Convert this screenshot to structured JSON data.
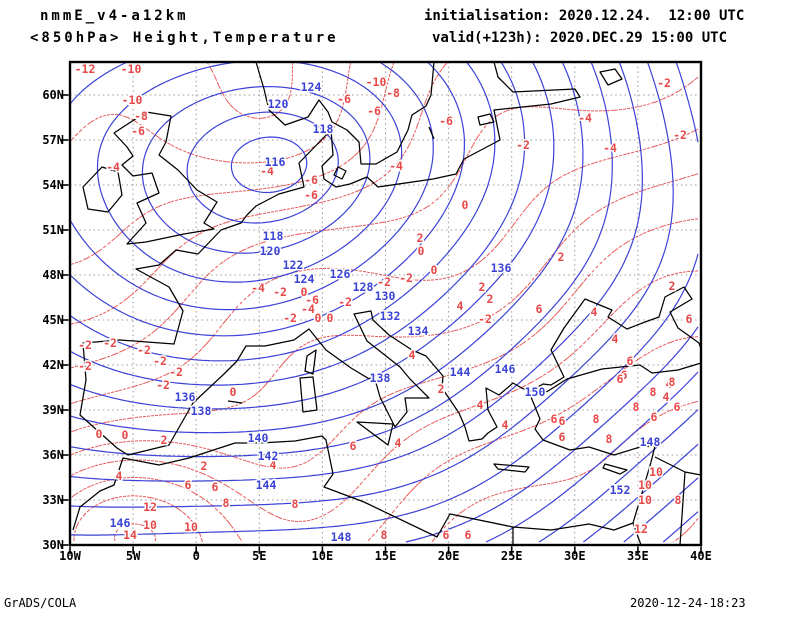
{
  "header": {
    "model_name": "nmmE_v4-a12km",
    "product_line": "<850hPa> Height,Temperature",
    "init_line": "initialisation: 2020.12.24.  12:00 UTC",
    "valid_line": "valid(+123h): 2020.DEC.29 15:00 UTC"
  },
  "footer": {
    "left": "GrADS/COLA",
    "right": "2020-12-24-18:23"
  },
  "map": {
    "lat_labels": [
      "60N",
      "57N",
      "54N",
      "51N",
      "48N",
      "45N",
      "42N",
      "39N",
      "36N",
      "33N",
      "30N"
    ],
    "lon_labels": [
      "10W",
      "5W",
      "0",
      "5E",
      "10E",
      "15E",
      "20E",
      "25E",
      "30E",
      "35E",
      "40E"
    ],
    "colors": {
      "height_contour": "#3b42d6",
      "temp_contour": "#e85a5a",
      "temp_label": "#e84848",
      "coastline": "#000000",
      "gridline": "#9a9a9a",
      "frame": "#000000",
      "text": "#000000"
    },
    "height_contour_units": "dm",
    "temp_contour_units": "C",
    "height_levels": [
      116,
      118,
      120,
      122,
      124,
      126,
      128,
      130,
      132,
      134,
      136,
      138,
      140,
      142,
      144,
      146,
      148,
      150,
      152
    ],
    "temp_levels": [
      -12,
      -10,
      -8,
      -6,
      -4,
      -2,
      0,
      2,
      4,
      6,
      8,
      10,
      12,
      14
    ],
    "height_labels": [
      [
        116,
        205,
        100
      ],
      [
        118,
        253,
        67
      ],
      [
        118,
        203,
        174
      ],
      [
        120,
        208,
        42
      ],
      [
        120,
        200,
        189
      ],
      [
        122,
        223,
        203
      ],
      [
        124,
        241,
        25
      ],
      [
        124,
        234,
        217
      ],
      [
        126,
        270,
        212
      ],
      [
        128,
        293,
        225
      ],
      [
        130,
        315,
        234
      ],
      [
        132,
        320,
        254
      ],
      [
        134,
        348,
        269
      ],
      [
        136,
        431,
        206
      ],
      [
        136,
        115,
        335
      ],
      [
        138,
        131,
        349
      ],
      [
        138,
        310,
        316
      ],
      [
        140,
        188,
        376
      ],
      [
        142,
        198,
        394
      ],
      [
        144,
        196,
        423
      ],
      [
        144,
        390,
        310
      ],
      [
        146,
        50,
        461
      ],
      [
        146,
        435,
        307
      ],
      [
        148,
        271,
        475
      ],
      [
        148,
        580,
        380
      ],
      [
        150,
        465,
        330
      ],
      [
        152,
        550,
        428
      ]
    ],
    "temp_labels": [
      [
        -12,
        15,
        7
      ],
      [
        -10,
        61,
        7
      ],
      [
        -10,
        62,
        38
      ],
      [
        -10,
        306,
        20
      ],
      [
        -8,
        71,
        54
      ],
      [
        -8,
        323,
        31
      ],
      [
        -6,
        68,
        69
      ],
      [
        -6,
        274,
        37
      ],
      [
        -6,
        304,
        49
      ],
      [
        -6,
        376,
        59
      ],
      [
        -6,
        241,
        118
      ],
      [
        -6,
        241,
        133
      ],
      [
        -6,
        242,
        238
      ],
      [
        -4,
        43,
        105
      ],
      [
        -4,
        326,
        104
      ],
      [
        -4,
        197,
        109
      ],
      [
        -4,
        515,
        56
      ],
      [
        -4,
        540,
        86
      ],
      [
        -4,
        238,
        247
      ],
      [
        -4,
        188,
        226
      ],
      [
        -2,
        594,
        21
      ],
      [
        -2,
        610,
        73
      ],
      [
        -2,
        453,
        83
      ],
      [
        -2,
        314,
        220
      ],
      [
        -2,
        336,
        216
      ],
      [
        -2,
        275,
        240
      ],
      [
        -2,
        210,
        230
      ],
      [
        -2,
        220,
        256
      ],
      [
        -2,
        15,
        283
      ],
      [
        -2,
        40,
        281
      ],
      [
        -2,
        74,
        288
      ],
      [
        -2,
        15,
        304
      ],
      [
        -2,
        90,
        299
      ],
      [
        -2,
        106,
        310
      ],
      [
        -2,
        415,
        257
      ],
      [
        -2,
        93,
        323
      ],
      [
        0,
        395,
        143
      ],
      [
        0,
        351,
        189
      ],
      [
        0,
        364,
        208
      ],
      [
        0,
        234,
        230
      ],
      [
        0,
        248,
        256
      ],
      [
        0,
        260,
        256
      ],
      [
        0,
        163,
        330
      ],
      [
        0,
        29,
        372
      ],
      [
        0,
        55,
        373
      ],
      [
        2,
        350,
        176
      ],
      [
        2,
        412,
        225
      ],
      [
        2,
        420,
        237
      ],
      [
        2,
        491,
        195
      ],
      [
        2,
        602,
        224
      ],
      [
        2,
        94,
        378
      ],
      [
        2,
        134,
        404
      ],
      [
        2,
        371,
        327
      ],
      [
        4,
        390,
        244
      ],
      [
        4,
        342,
        293
      ],
      [
        4,
        524,
        250
      ],
      [
        4,
        545,
        277
      ],
      [
        4,
        203,
        403
      ],
      [
        4,
        49,
        414
      ],
      [
        4,
        410,
        343
      ],
      [
        4,
        435,
        363
      ],
      [
        4,
        328,
        381
      ],
      [
        4,
        596,
        335
      ],
      [
        4,
        599,
        322
      ],
      [
        6,
        469,
        247
      ],
      [
        6,
        619,
        257
      ],
      [
        6,
        554,
        313
      ],
      [
        6,
        118,
        423
      ],
      [
        6,
        145,
        425
      ],
      [
        6,
        283,
        384
      ],
      [
        6,
        492,
        359
      ],
      [
        6,
        560,
        299
      ],
      [
        6,
        550,
        317
      ],
      [
        6,
        607,
        345
      ],
      [
        6,
        584,
        355
      ],
      [
        6,
        484,
        357
      ],
      [
        6,
        492,
        375
      ],
      [
        6,
        376,
        473
      ],
      [
        6,
        398,
        473
      ],
      [
        8,
        156,
        441
      ],
      [
        8,
        225,
        442
      ],
      [
        8,
        314,
        473
      ],
      [
        8,
        602,
        320
      ],
      [
        8,
        583,
        330
      ],
      [
        8,
        566,
        345
      ],
      [
        8,
        526,
        357
      ],
      [
        8,
        539,
        377
      ],
      [
        8,
        608,
        438
      ],
      [
        10,
        80,
        463
      ],
      [
        10,
        121,
        465
      ],
      [
        10,
        586,
        410
      ],
      [
        10,
        575,
        423
      ],
      [
        10,
        575,
        438
      ],
      [
        12,
        80,
        445
      ],
      [
        12,
        571,
        467
      ],
      [
        14,
        60,
        473
      ]
    ]
  }
}
